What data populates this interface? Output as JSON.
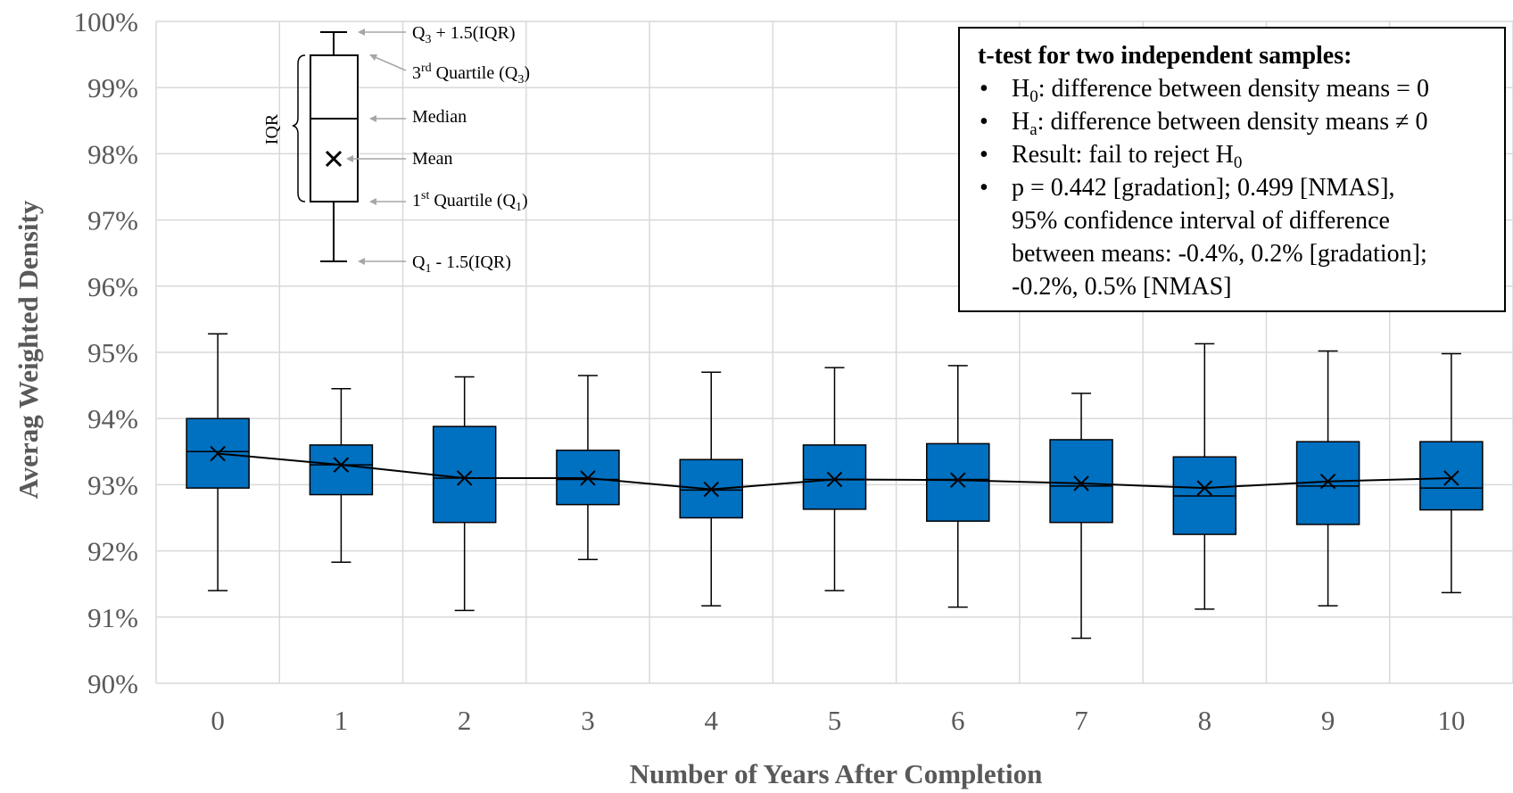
{
  "chart_data": {
    "type": "boxplot",
    "ylabel": "Averag Weighted Density",
    "xlabel": "Number of Years After Completion",
    "ylim": [
      90,
      100
    ],
    "y_ticks": [
      "90%",
      "91%",
      "92%",
      "93%",
      "94%",
      "95%",
      "96%",
      "97%",
      "98%",
      "99%",
      "100%"
    ],
    "categories": [
      "0",
      "1",
      "2",
      "3",
      "4",
      "5",
      "6",
      "7",
      "8",
      "9",
      "10"
    ],
    "grid": true,
    "box_color": "#0070C0",
    "mean_line": true,
    "boxes": [
      {
        "min": 91.4,
        "q1": 92.95,
        "median": 93.5,
        "q3": 94.0,
        "max": 95.28,
        "mean": 93.47
      },
      {
        "min": 91.83,
        "q1": 92.85,
        "median": 93.3,
        "q3": 93.6,
        "max": 94.45,
        "mean": 93.3
      },
      {
        "min": 91.1,
        "q1": 92.43,
        "median": 93.1,
        "q3": 93.88,
        "max": 94.63,
        "mean": 93.1
      },
      {
        "min": 91.87,
        "q1": 92.7,
        "median": 93.08,
        "q3": 93.52,
        "max": 94.65,
        "mean": 93.1
      },
      {
        "min": 91.17,
        "q1": 92.5,
        "median": 92.92,
        "q3": 93.38,
        "max": 94.7,
        "mean": 92.93
      },
      {
        "min": 91.4,
        "q1": 92.63,
        "median": 93.08,
        "q3": 93.6,
        "max": 94.77,
        "mean": 93.08
      },
      {
        "min": 91.15,
        "q1": 92.45,
        "median": 93.08,
        "q3": 93.62,
        "max": 94.8,
        "mean": 93.07
      },
      {
        "min": 90.68,
        "q1": 92.43,
        "median": 92.98,
        "q3": 93.68,
        "max": 94.38,
        "mean": 93.02
      },
      {
        "min": 91.12,
        "q1": 92.25,
        "median": 92.83,
        "q3": 93.42,
        "max": 95.13,
        "mean": 92.95
      },
      {
        "min": 91.17,
        "q1": 92.4,
        "median": 92.98,
        "q3": 93.65,
        "max": 95.02,
        "mean": 93.05
      },
      {
        "min": 91.37,
        "q1": 92.62,
        "median": 92.95,
        "q3": 93.65,
        "max": 94.98,
        "mean": 93.1
      }
    ],
    "legend_example": {
      "whisker_top_label": "Q",
      "whisker_top_sub": "3",
      "whisker_top_suffix": " + 1.5(IQR)",
      "q3_label": "3",
      "q3_sup": "rd",
      "q3_mid": " Quartile (Q",
      "q3_sub": "3",
      "q3_end": ")",
      "median_label": "Median",
      "mean_label": "Mean",
      "q1_label": "1",
      "q1_sup": "st",
      "q1_mid": " Quartile (Q",
      "q1_sub": "1",
      "q1_end": ")",
      "whisker_bottom_label": "Q",
      "whisker_bottom_sub": "1",
      "whisker_bottom_suffix": " - 1.5(IQR)",
      "iqr_label": "IQR"
    }
  },
  "ttest": {
    "title": "t-test for two independent samples:",
    "h0_pre": "H",
    "h0_sub": "0",
    "h0_text": ": difference between density means = 0",
    "ha_pre": "H",
    "ha_sub": "a",
    "ha_text": ": difference between density means ≠ 0",
    "result_text": "Result: fail to reject H",
    "result_sub": "0",
    "p_line1": "p = 0.442 [gradation]; 0.499 [NMAS],",
    "p_line2": "95% confidence interval of difference",
    "p_line3": "between means: -0.4%, 0.2% [gradation];",
    "p_line4": "-0.2%, 0.5% [NMAS]"
  }
}
